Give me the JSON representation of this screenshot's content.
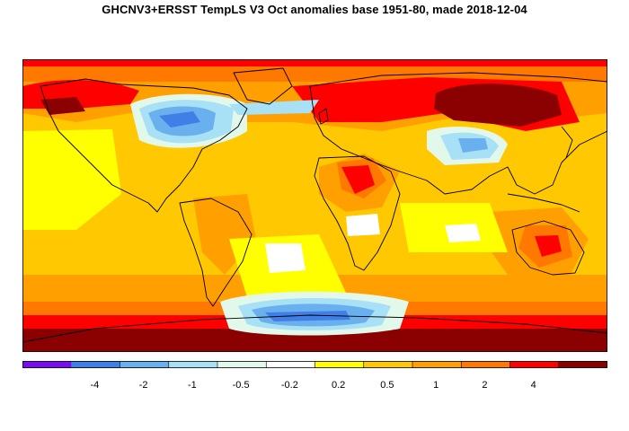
{
  "title": "GHCNV3+ERSST TempLS V3 Oct anomalies base 1951-80, made 2018-12-04",
  "legend": {
    "colors": [
      "#7b0cf2",
      "#3f7fe6",
      "#6ab0ee",
      "#a8e0f5",
      "#e2f8ea",
      "#ffffff",
      "#ffff00",
      "#ffc800",
      "#ffa000",
      "#ff7800",
      "#ff0000",
      "#8b0000"
    ],
    "labels": [
      "-4",
      "-2",
      "-1",
      "-0.5",
      "-0.2",
      "0.2",
      "0.5",
      "1",
      "2",
      "4"
    ]
  },
  "map_colors": {
    "pale_yellow": "#ffc800",
    "orange": "#ffa000",
    "dark_orange": "#ff7800",
    "red": "#ff0000",
    "dark_red": "#8b0000",
    "yellow": "#ffff00",
    "white": "#ffffff",
    "mint": "#e2f8ea",
    "light_blue": "#a8e0f5",
    "blue": "#6ab0ee",
    "deep_blue": "#3f7fe6"
  }
}
